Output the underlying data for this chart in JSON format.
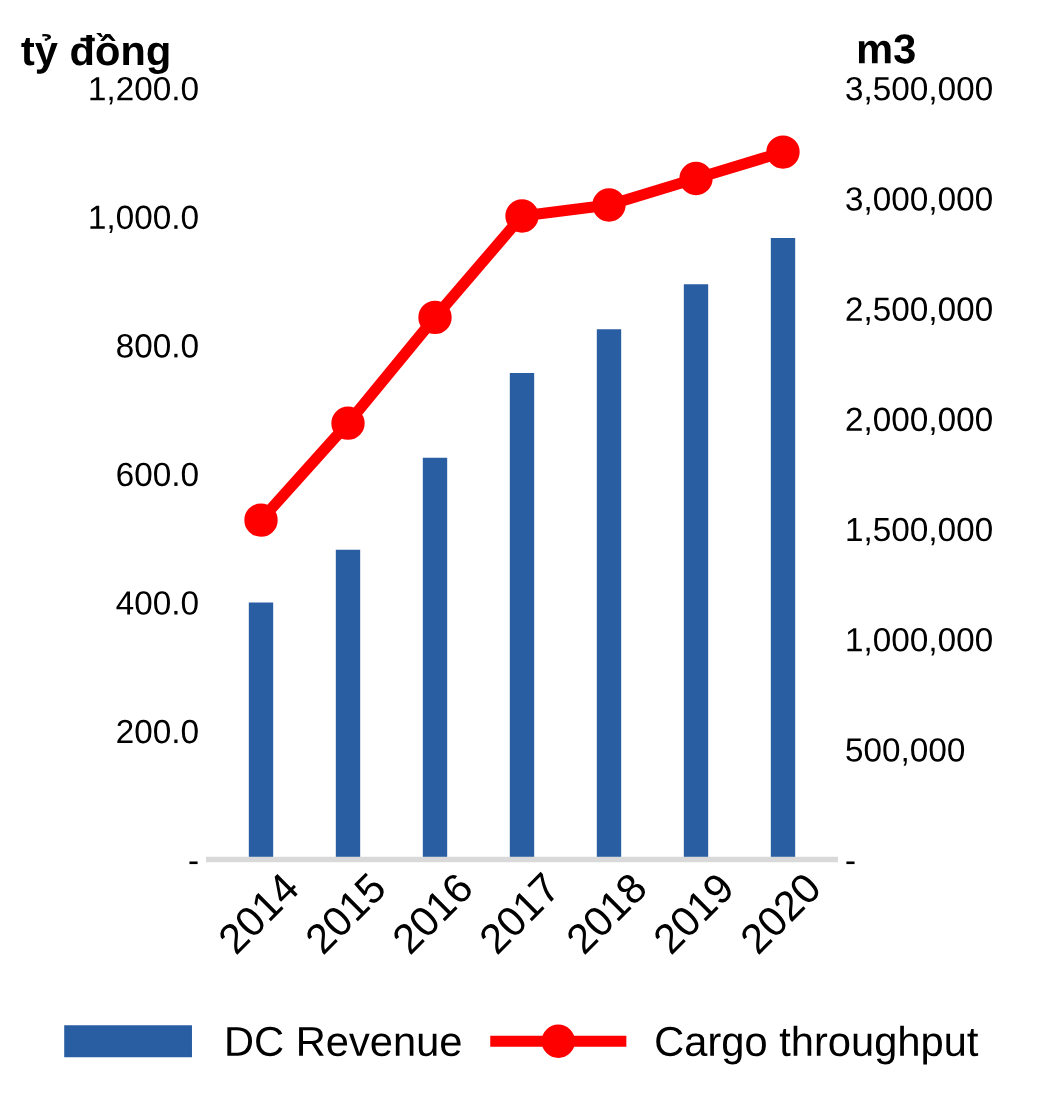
{
  "chart_data": {
    "type": "bar",
    "ylabel": "tỷ đồng",
    "y2label": "m3",
    "categories": [
      "2014",
      "2015",
      "2016",
      "2017",
      "2018",
      "2019",
      "2020"
    ],
    "series": [
      {
        "name": "DC Revenue",
        "color": "#2a5ea3",
        "values": [
          400,
          482,
          625,
          757,
          825,
          895,
          967
        ]
      },
      {
        "name": "Cargo throughput",
        "type": "line",
        "axis": "y2",
        "color": "#ff0000",
        "marker": "circle",
        "values": [
          1540000,
          1980000,
          2460000,
          2920000,
          2970000,
          3090000,
          3210000
        ]
      }
    ],
    "ylim": [
      0,
      1200
    ],
    "yticks": [
      {
        "value": 0,
        "label": "-"
      },
      {
        "value": 200,
        "label": "200.0"
      },
      {
        "value": 400,
        "label": "400.0"
      },
      {
        "value": 600,
        "label": "600.0"
      },
      {
        "value": 800,
        "label": "800.0"
      },
      {
        "value": 1000,
        "label": "1,000.0"
      },
      {
        "value": 1200,
        "label": "1,200.0"
      }
    ],
    "y2lim": [
      0,
      3500000
    ],
    "y2ticks": [
      {
        "value": 0,
        "label": "-"
      },
      {
        "value": 500000,
        "label": "500,000"
      },
      {
        "value": 1000000,
        "label": "1,000,000"
      },
      {
        "value": 1500000,
        "label": "1,500,000"
      },
      {
        "value": 2000000,
        "label": "2,000,000"
      },
      {
        "value": 2500000,
        "label": "2,500,000"
      },
      {
        "value": 3000000,
        "label": "3,000,000"
      },
      {
        "value": 3500000,
        "label": "3,500,000"
      }
    ],
    "legend": "bottom",
    "grid": false
  }
}
